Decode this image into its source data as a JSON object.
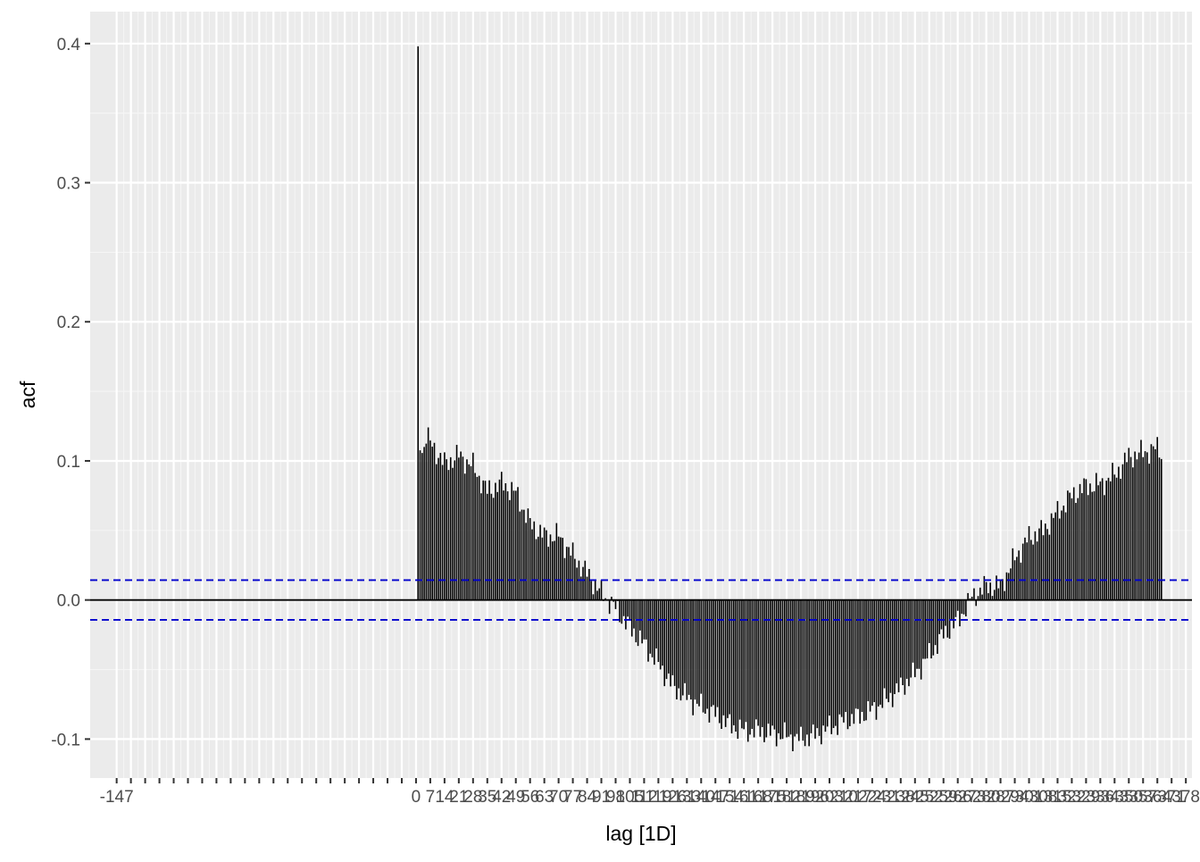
{
  "chart_data": {
    "type": "bar",
    "title": "",
    "xlabel": "lag [1D]",
    "ylabel": "acf",
    "xlim": [
      -160,
      381
    ],
    "ylim": [
      -0.128,
      0.423
    ],
    "grid": true,
    "legend": "none",
    "y_ticks": [
      -0.1,
      0.0,
      0.1,
      0.2,
      0.3,
      0.4
    ],
    "y_tick_labels": [
      "-0.1",
      "0.0",
      "0.1",
      "0.2",
      "0.3",
      "0.4"
    ],
    "x_ticks": [
      -147,
      -140,
      -133,
      -126,
      -119,
      -112,
      -105,
      -98,
      -91,
      -84,
      -77,
      -70,
      -63,
      -56,
      -49,
      -42,
      -35,
      -28,
      -21,
      -14,
      -7,
      0,
      7,
      14,
      21,
      28,
      35,
      42,
      49,
      56,
      63,
      70,
      77,
      84,
      91,
      98,
      105,
      112,
      119,
      126,
      133,
      140,
      147,
      154,
      161,
      168,
      175,
      182,
      189,
      196,
      203,
      210,
      217,
      224,
      231,
      238,
      245,
      252,
      259,
      266,
      273,
      280,
      287,
      294,
      301,
      308,
      315,
      322,
      329,
      336,
      343,
      350,
      357,
      364,
      371,
      378
    ],
    "x_tick_labels": [
      "-147",
      "",
      "",
      "",
      "",
      "",
      "",
      "",
      "",
      "",
      "",
      "",
      "",
      "",
      "",
      "",
      "",
      "",
      "",
      "",
      "",
      "0",
      "7",
      "14",
      "21",
      "28",
      "35",
      "42",
      "49",
      "56",
      "63",
      "70",
      "77",
      "84",
      "91",
      "98",
      "105",
      "112",
      "119",
      "126",
      "133",
      "140",
      "147",
      "154",
      "161",
      "168",
      "175",
      "182",
      "189",
      "196",
      "203",
      "210",
      "217",
      "224",
      "231",
      "238",
      "245",
      "252",
      "259",
      "266",
      "273",
      "280",
      "287",
      "294",
      "301",
      "308",
      "315",
      "322",
      "329",
      "336",
      "343",
      "350",
      "357",
      "364",
      "371",
      "378"
    ],
    "confidence_band": 0.0143,
    "colors": {
      "panel": "#ebebeb",
      "grid_major": "#ffffff",
      "bars": "#000000",
      "confidence": "#0000cc"
    },
    "keypoints": [
      [
        1,
        0.398
      ],
      [
        2,
        0.115
      ],
      [
        3,
        0.106
      ],
      [
        5,
        0.118
      ],
      [
        7,
        0.113
      ],
      [
        14,
        0.098
      ],
      [
        21,
        0.104
      ],
      [
        28,
        0.096
      ],
      [
        35,
        0.078
      ],
      [
        42,
        0.084
      ],
      [
        49,
        0.077
      ],
      [
        56,
        0.055
      ],
      [
        63,
        0.046
      ],
      [
        70,
        0.046
      ],
      [
        77,
        0.032
      ],
      [
        84,
        0.019
      ],
      [
        91,
        0.005
      ],
      [
        98,
        -0.006
      ],
      [
        105,
        -0.02
      ],
      [
        112,
        -0.032
      ],
      [
        119,
        -0.046
      ],
      [
        126,
        -0.062
      ],
      [
        133,
        -0.07
      ],
      [
        140,
        -0.077
      ],
      [
        147,
        -0.082
      ],
      [
        154,
        -0.09
      ],
      [
        161,
        -0.094
      ],
      [
        168,
        -0.094
      ],
      [
        175,
        -0.096
      ],
      [
        182,
        -0.098
      ],
      [
        189,
        -0.1
      ],
      [
        196,
        -0.097
      ],
      [
        203,
        -0.092
      ],
      [
        210,
        -0.087
      ],
      [
        217,
        -0.084
      ],
      [
        224,
        -0.079
      ],
      [
        231,
        -0.072
      ],
      [
        238,
        -0.063
      ],
      [
        245,
        -0.053
      ],
      [
        252,
        -0.04
      ],
      [
        259,
        -0.025
      ],
      [
        266,
        -0.015
      ],
      [
        273,
        0.002
      ],
      [
        280,
        0.01
      ],
      [
        287,
        0.01
      ],
      [
        294,
        0.03
      ],
      [
        301,
        0.045
      ],
      [
        308,
        0.05
      ],
      [
        315,
        0.063
      ],
      [
        322,
        0.075
      ],
      [
        329,
        0.082
      ],
      [
        336,
        0.083
      ],
      [
        343,
        0.09
      ],
      [
        350,
        0.103
      ],
      [
        357,
        0.106
      ],
      [
        364,
        0.109
      ],
      [
        366,
        0.106
      ]
    ],
    "n_lags": 366
  }
}
